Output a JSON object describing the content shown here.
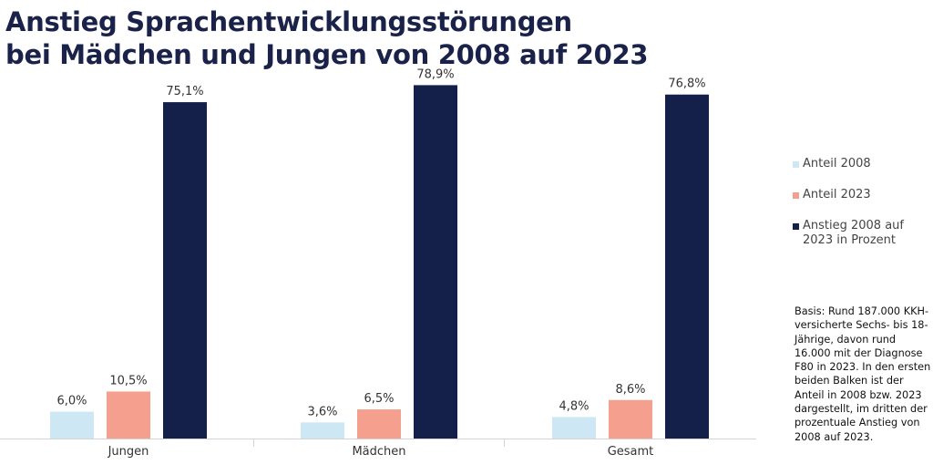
{
  "title_lines": [
    "Anstieg Sprachentwicklungsstörungen",
    "bei Mädchen und Jungen von 2008 auf 2023"
  ],
  "legend": [
    {
      "label": "Anteil 2008",
      "color": "#cde8f4"
    },
    {
      "label": "Anteil 2023",
      "color": "#f5a08f"
    },
    {
      "label": "Anstieg 2008 auf 2023 in Prozent",
      "color": "#14204a"
    }
  ],
  "note": "Basis: Rund 187.000 KKH-versicherte Sechs- bis 18-Jährige, davon rund 16.000 mit der Diagnose F80 in 2023. In den ersten beiden Balken ist der Anteil in 2008 bzw. 2023 dargestellt, im dritten der prozentuale Anstieg von 2008 auf 2023.",
  "chart_data": {
    "type": "bar",
    "categories": [
      "Jungen",
      "Mädchen",
      "Gesamt"
    ],
    "series": [
      {
        "name": "Anteil 2008",
        "values": [
          6.0,
          3.6,
          4.8
        ],
        "labels": [
          "6,0%",
          "3,6%",
          "4,8%"
        ],
        "color": "#cde8f4"
      },
      {
        "name": "Anteil 2023",
        "values": [
          10.5,
          6.5,
          8.6
        ],
        "labels": [
          "10,5%",
          "6,5%",
          "8,6%"
        ],
        "color": "#f5a08f"
      },
      {
        "name": "Anstieg 2008 auf 2023 in Prozent",
        "values": [
          75.1,
          78.9,
          76.8
        ],
        "labels": [
          "75,1%",
          "78,9%",
          "76,8%"
        ],
        "color": "#14204a"
      }
    ],
    "ylim": [
      0,
      80
    ],
    "grid": false,
    "legend_position": "right"
  }
}
